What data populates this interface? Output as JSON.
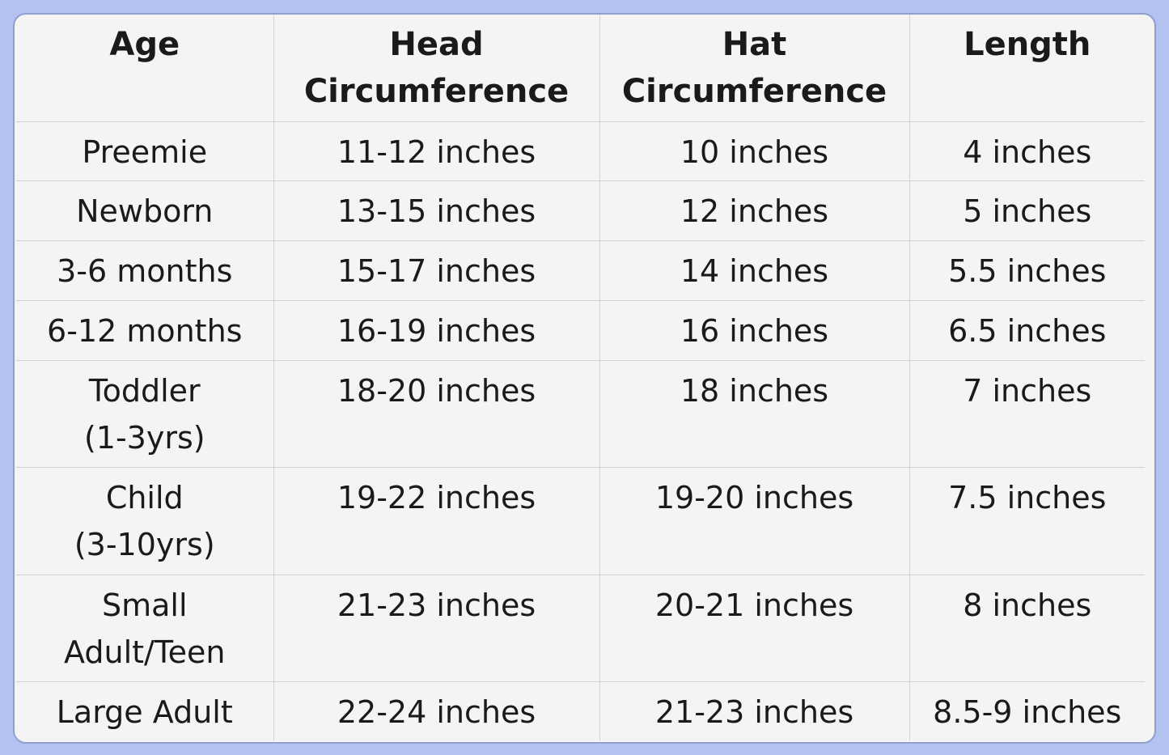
{
  "table": {
    "header": [
      "Age",
      [
        "Head",
        "Circumference"
      ],
      [
        "Hat",
        "Circumference"
      ],
      "Length"
    ],
    "rows": [
      [
        "Preemie",
        "11-12 inches",
        "10 inches",
        "4 inches"
      ],
      [
        "Newborn",
        "13-15 inches",
        "12 inches",
        "5 inches"
      ],
      [
        "3-6 months",
        "15-17 inches",
        "14 inches",
        "5.5 inches"
      ],
      [
        "6-12 months",
        "16-19 inches",
        "16 inches",
        "6.5 inches"
      ],
      [
        [
          "Toddler",
          "(1-3yrs)"
        ],
        "18-20 inches",
        "18 inches",
        "7 inches"
      ],
      [
        [
          "Child",
          "(3-10yrs)"
        ],
        "19-22 inches",
        "19-20 inches",
        "7.5 inches"
      ],
      [
        [
          "Small",
          "Adult/Teen"
        ],
        "21-23 inches",
        "20-21 inches",
        "8 inches"
      ],
      [
        "Large Adult",
        "22-24 inches",
        "21-23 inches",
        "8.5-9 inches"
      ]
    ]
  }
}
